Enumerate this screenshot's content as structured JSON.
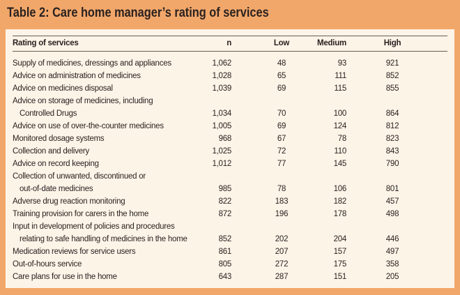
{
  "title": "Table 2: Care home manager’s rating of services",
  "table": {
    "header": [
      "Rating of services",
      "n",
      "Low",
      "Medium",
      "High"
    ],
    "rows": [
      {
        "label": [
          "Supply of medicines, dressings and appliances"
        ],
        "cells": [
          "1,062",
          "48",
          "93",
          "921"
        ]
      },
      {
        "label": [
          "Advice on administration of medicines"
        ],
        "cells": [
          "1,028",
          "65",
          "111",
          "852"
        ]
      },
      {
        "label": [
          "Advice on medicines disposal"
        ],
        "cells": [
          "1,039",
          "69",
          "115",
          "855"
        ]
      },
      {
        "label": [
          "Advice on storage of medicines, including",
          "Controlled Drugs"
        ],
        "cells": [
          "1,034",
          "70",
          "100",
          "864"
        ]
      },
      {
        "label": [
          "Advice on use of over-the-counter medicines"
        ],
        "cells": [
          "1,005",
          "69",
          "124",
          "812"
        ]
      },
      {
        "label": [
          "Monitored dosage systems"
        ],
        "cells": [
          "968",
          "67",
          "78",
          "823"
        ]
      },
      {
        "label": [
          "Collection and delivery"
        ],
        "cells": [
          "1,025",
          "72",
          "110",
          "843"
        ]
      },
      {
        "label": [
          "Advice on record keeping"
        ],
        "cells": [
          "1,012",
          "77",
          "145",
          "790"
        ]
      },
      {
        "label": [
          "Collection of unwanted, discontinued or",
          "out-of-date medicines"
        ],
        "cells": [
          "985",
          "78",
          "106",
          "801"
        ]
      },
      {
        "label": [
          "Adverse drug reaction monitoring"
        ],
        "cells": [
          "822",
          "183",
          "182",
          "457"
        ]
      },
      {
        "label": [
          "Training provision for carers in the home"
        ],
        "cells": [
          "872",
          "196",
          "178",
          "498"
        ]
      },
      {
        "label": [
          "Input in development of policies and procedures",
          "relating to safe handling of medicines in the home"
        ],
        "cells": [
          "852",
          "202",
          "204",
          "446"
        ]
      },
      {
        "label": [
          "Medication reviews for service users"
        ],
        "cells": [
          "861",
          "207",
          "157",
          "497"
        ]
      },
      {
        "label": [
          "Out-of-hours service"
        ],
        "cells": [
          "805",
          "272",
          "175",
          "358"
        ]
      },
      {
        "label": [
          "Care plans for use in the home"
        ],
        "cells": [
          "643",
          "287",
          "151",
          "205"
        ]
      }
    ]
  }
}
